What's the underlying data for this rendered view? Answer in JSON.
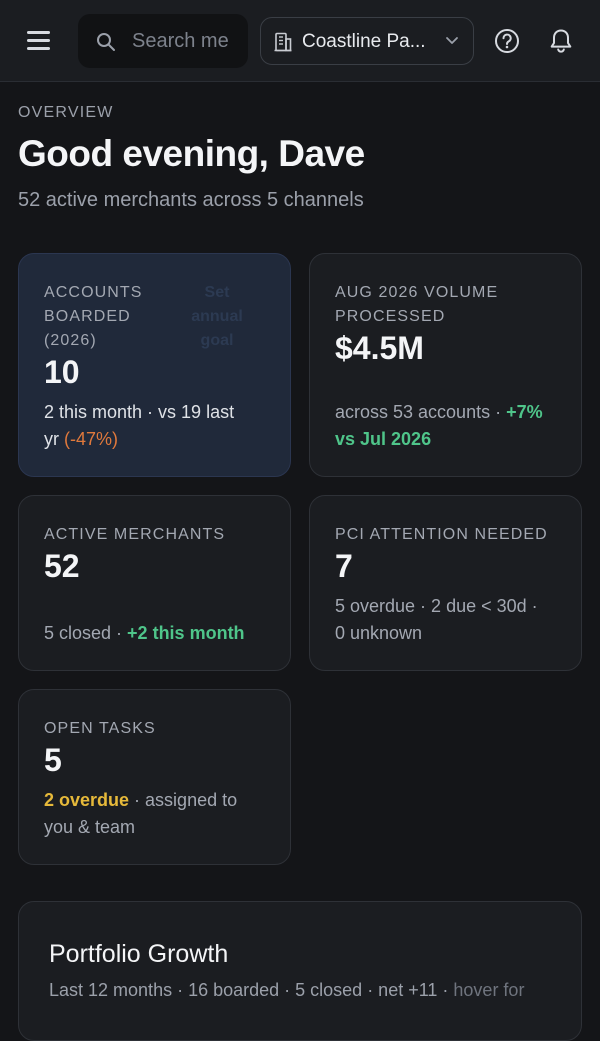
{
  "header": {
    "search_placeholder": "Search me",
    "org_name": "Coastline Pa...",
    "icons": [
      "menu-icon",
      "search-icon",
      "building-icon",
      "chevron-down-icon",
      "help-icon",
      "bell-icon"
    ]
  },
  "overview": {
    "eyebrow": "OVERVIEW",
    "greeting": "Good evening, Dave",
    "subtitle": "52 active merchants across 5 channels"
  },
  "cards": {
    "accounts": {
      "label_line1": "ACCOUNTS",
      "label_line2": "BOARDED",
      "label_line3": "(2026)",
      "goal_line1": "Set",
      "goal_line2": "annual",
      "goal_line3": "goal",
      "value": "10",
      "sub_main_1": "2 this month · vs 19 last",
      "sub_main_2": "yr",
      "sub_change": "(-47%)"
    },
    "volume": {
      "label_line1": "AUG 2026 VOLUME",
      "label_line2": "PROCESSED",
      "value": "$4.5M",
      "sub_main": "across 53 accounts · ",
      "sub_change_1": "+7%",
      "sub_change_2": "vs Jul 2026"
    },
    "merchants": {
      "label": "ACTIVE MERCHANTS",
      "value": "52",
      "sub_main": "5 closed · ",
      "sub_change": "+2 this month"
    },
    "pci": {
      "label": "PCI ATTENTION NEEDED",
      "value": "7",
      "sub_line1": "5 overdue · 2 due < 30d ·",
      "sub_line2": "0 unknown"
    },
    "tasks": {
      "label": "OPEN TASKS",
      "value": "5",
      "sub_overdue": "2 overdue",
      "sub_main_1": " · assigned to",
      "sub_main_2": "you & team"
    }
  },
  "growth": {
    "title": "Portfolio Growth",
    "stats": "Last 12 months · 16 boarded · 5 closed · net +11 · ",
    "hint": "hover for"
  },
  "colors": {
    "background": "#141518",
    "card": "#1b1d21",
    "highlight_card": "#20293a",
    "positive": "#4fc58a",
    "negative": "#e0793c",
    "warning": "#e6b93a"
  }
}
